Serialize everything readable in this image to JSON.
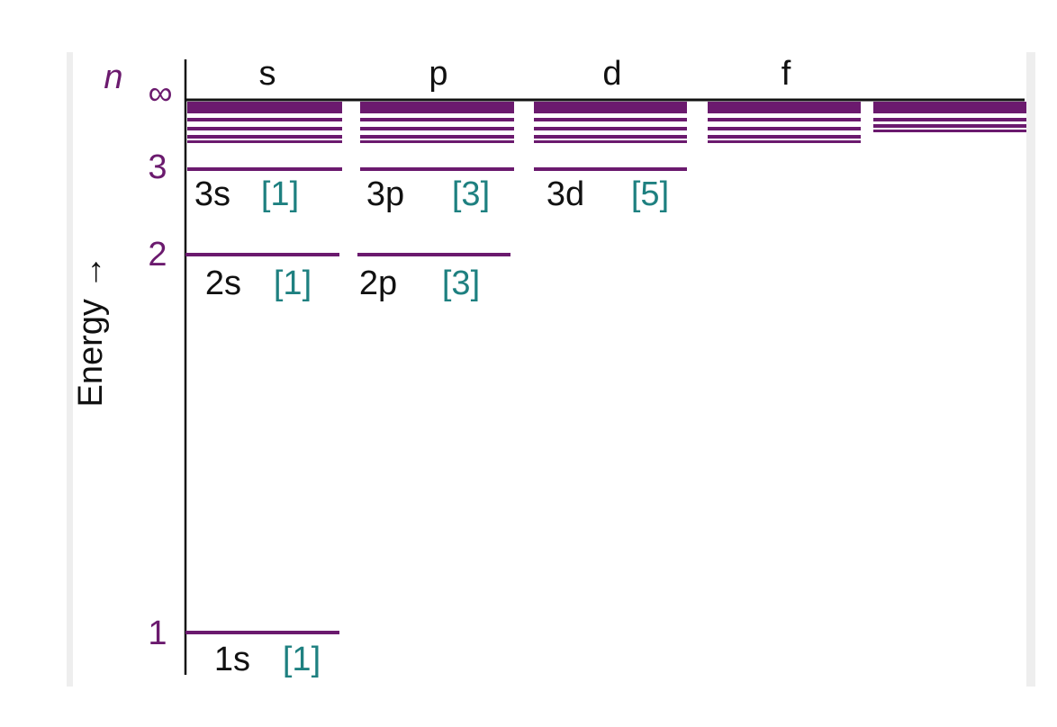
{
  "axis_label": "Energy →",
  "n_label": "n",
  "levels": [
    "∞",
    "3",
    "2",
    "1"
  ],
  "subshells": [
    "s",
    "p",
    "d",
    "f"
  ],
  "orbitals": [
    {
      "name": "3s",
      "count": "[1]"
    },
    {
      "name": "3p",
      "count": "[3]"
    },
    {
      "name": "3d",
      "count": "[5]"
    },
    {
      "name": "2s",
      "count": "[1]"
    },
    {
      "name": "2p",
      "count": "[3]"
    },
    {
      "name": "1s",
      "count": "[1]"
    }
  ]
}
